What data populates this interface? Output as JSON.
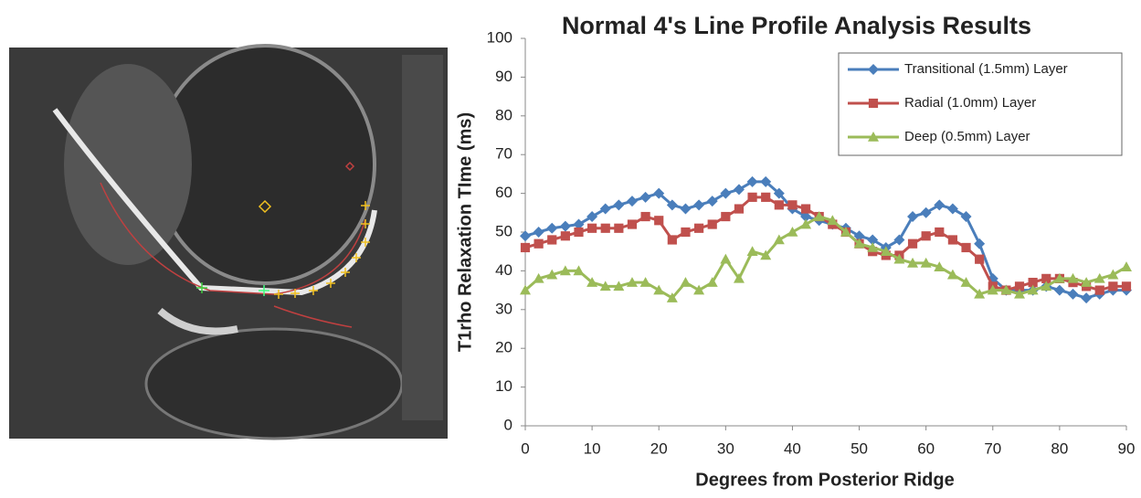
{
  "chart_data": {
    "type": "line",
    "title": "Normal 4's Line Profile Analysis Results",
    "x_label": "Degrees from Posterior Ridge",
    "y_label": "T1rho Relaxation TIme (ms)",
    "x": [
      0,
      2,
      4,
      6,
      8,
      10,
      12,
      14,
      16,
      18,
      20,
      22,
      24,
      26,
      28,
      30,
      32,
      34,
      36,
      38,
      40,
      42,
      44,
      46,
      48,
      50,
      52,
      54,
      56,
      58,
      60,
      62,
      64,
      66,
      68,
      70,
      72,
      74,
      76,
      78,
      80,
      82,
      84,
      86,
      88,
      90
    ],
    "series": [
      {
        "name": "Transitional (1.5mm) Layer",
        "color": "#4a7ebb",
        "marker": "diamond",
        "values": [
          49,
          50,
          51,
          51.5,
          52,
          54,
          56,
          57,
          58,
          59,
          60,
          57,
          56,
          57,
          58,
          60,
          61,
          63,
          63,
          60,
          56,
          54,
          53,
          52,
          51,
          49,
          48,
          46,
          48,
          54,
          55,
          57,
          56,
          54,
          47,
          38,
          35,
          35,
          35,
          36,
          35,
          34,
          33,
          34,
          35,
          35
        ]
      },
      {
        "name": "Radial (1.0mm) Layer",
        "color": "#c0504d",
        "marker": "square",
        "values": [
          46,
          47,
          48,
          49,
          50,
          51,
          51,
          51,
          52,
          54,
          53,
          48,
          50,
          51,
          52,
          54,
          56,
          59,
          59,
          57,
          57,
          56,
          54,
          52,
          50,
          47,
          45,
          44,
          44,
          47,
          49,
          50,
          48,
          46,
          43,
          36,
          35,
          36,
          37,
          38,
          38,
          37,
          36,
          35,
          36,
          36
        ]
      },
      {
        "name": "Deep (0.5mm) Layer",
        "color": "#9bbb59",
        "marker": "triangle",
        "values": [
          35,
          38,
          39,
          40,
          40,
          37,
          36,
          36,
          37,
          37,
          35,
          33,
          37,
          35,
          37,
          43,
          38,
          45,
          44,
          48,
          50,
          52,
          54,
          53,
          50,
          47,
          46,
          45,
          43,
          42,
          42,
          41,
          39,
          37,
          34,
          35,
          35,
          34,
          35,
          36,
          38,
          38,
          37,
          38,
          39,
          41
        ]
      }
    ],
    "xlim": [
      0,
      90
    ],
    "xticks": [
      0,
      10,
      20,
      30,
      40,
      50,
      60,
      70,
      80,
      90
    ],
    "ylim": [
      0,
      100
    ],
    "yticks": [
      0,
      10,
      20,
      30,
      40,
      50,
      60,
      70,
      80,
      90,
      100
    ],
    "grid": false,
    "legend": "upper-right"
  }
}
